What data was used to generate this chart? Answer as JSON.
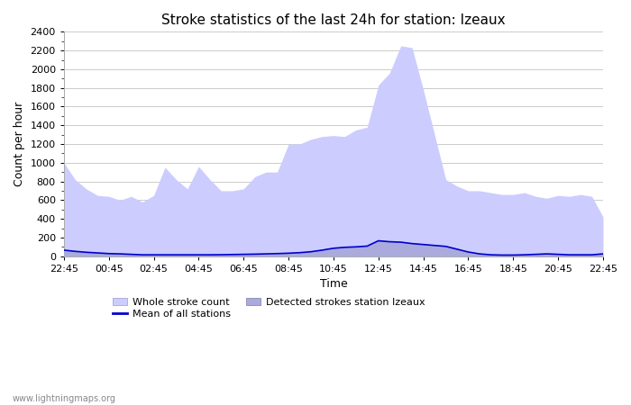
{
  "title": "Stroke statistics of the last 24h for station: Izeaux",
  "xlabel": "Time",
  "ylabel": "Count per hour",
  "watermark": "www.lightningmaps.org",
  "ylim": [
    0,
    2400
  ],
  "yticks": [
    0,
    200,
    400,
    600,
    800,
    1000,
    1200,
    1400,
    1600,
    1800,
    2000,
    2200,
    2400
  ],
  "time_labels": [
    "22:45",
    "00:45",
    "02:45",
    "04:45",
    "06:45",
    "08:45",
    "10:45",
    "12:45",
    "14:45",
    "16:45",
    "18:45",
    "20:45",
    "22:45"
  ],
  "whole_stroke_x": [
    0,
    1,
    2,
    3,
    4,
    5,
    6,
    7,
    8,
    9,
    10,
    11,
    12,
    13,
    14,
    15,
    16,
    17,
    18,
    19,
    20,
    21,
    22,
    23,
    24,
    25,
    26,
    27,
    28,
    29,
    30,
    31,
    32,
    33,
    34,
    35,
    36,
    37,
    38,
    39,
    40,
    41,
    42,
    43,
    44,
    45,
    46,
    47,
    48
  ],
  "whole_stroke_y": [
    1000,
    820,
    720,
    650,
    640,
    600,
    640,
    580,
    650,
    950,
    820,
    720,
    960,
    820,
    700,
    700,
    720,
    850,
    900,
    900,
    1200,
    1200,
    1250,
    1280,
    1290,
    1280,
    1350,
    1380,
    1830,
    1960,
    2250,
    2230,
    1780,
    1300,
    820,
    750,
    700,
    700,
    680,
    660,
    660,
    680,
    640,
    620,
    650,
    640,
    660,
    640,
    420
  ],
  "detected_stroke_x": [
    0,
    1,
    2,
    3,
    4,
    5,
    6,
    7,
    8,
    9,
    10,
    11,
    12,
    13,
    14,
    15,
    16,
    17,
    18,
    19,
    20,
    21,
    22,
    23,
    24,
    25,
    26,
    27,
    28,
    29,
    30,
    31,
    32,
    33,
    34,
    35,
    36,
    37,
    38,
    39,
    40,
    41,
    42,
    43,
    44,
    45,
    46,
    47,
    48
  ],
  "detected_stroke_y": [
    65,
    55,
    45,
    38,
    32,
    28,
    22,
    18,
    18,
    18,
    18,
    18,
    18,
    18,
    18,
    22,
    22,
    22,
    22,
    28,
    35,
    42,
    55,
    75,
    95,
    105,
    108,
    112,
    172,
    162,
    158,
    142,
    132,
    122,
    112,
    82,
    52,
    32,
    22,
    18,
    18,
    22,
    28,
    32,
    28,
    22,
    22,
    22,
    32
  ],
  "mean_x": [
    0,
    1,
    2,
    3,
    4,
    5,
    6,
    7,
    8,
    9,
    10,
    11,
    12,
    13,
    14,
    15,
    16,
    17,
    18,
    19,
    20,
    21,
    22,
    23,
    24,
    25,
    26,
    27,
    28,
    29,
    30,
    31,
    32,
    33,
    34,
    35,
    36,
    37,
    38,
    39,
    40,
    41,
    42,
    43,
    44,
    45,
    46,
    47,
    48
  ],
  "mean_y": [
    65,
    52,
    42,
    35,
    28,
    25,
    20,
    15,
    15,
    15,
    15,
    15,
    15,
    15,
    16,
    18,
    20,
    22,
    25,
    28,
    32,
    38,
    48,
    65,
    85,
    95,
    100,
    108,
    165,
    155,
    150,
    135,
    125,
    115,
    105,
    75,
    45,
    25,
    15,
    12,
    12,
    15,
    20,
    25,
    20,
    15,
    15,
    15,
    25
  ],
  "whole_fill_color": "#ccccff",
  "whole_line_color": "#ccccff",
  "detected_fill_color": "#aaaadd",
  "detected_line_color": "#aaaadd",
  "mean_line_color": "#0000cc",
  "background_color": "#ffffff",
  "grid_color": "#cccccc",
  "title_fontsize": 11,
  "axis_label_fontsize": 9,
  "tick_fontsize": 8,
  "legend_fontsize": 8
}
